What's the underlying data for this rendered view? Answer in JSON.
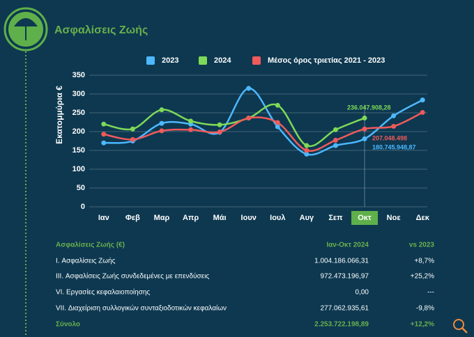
{
  "header": {
    "title": "Ασφαλίσεις Ζωής"
  },
  "chart_data": {
    "type": "line",
    "ylabel": "Εκατομμύρια €",
    "categories": [
      "Ιαν",
      "Φεβ",
      "Μαρ",
      "Απρ",
      "Μάι",
      "Ιουν",
      "Ιουλ",
      "Αυγ",
      "Σεπ",
      "Οκτ",
      "Νοε",
      "Δεκ"
    ],
    "highlight_category": 9,
    "series": [
      {
        "name": "2023",
        "color": "#4db8ff",
        "values": [
          170,
          175,
          222,
          220,
          198,
          315,
          213,
          140,
          163,
          180.74594887,
          242,
          284
        ],
        "value_labels": [
          null,
          null,
          null,
          null,
          null,
          null,
          null,
          null,
          null,
          "180.745.948,87",
          null,
          null
        ]
      },
      {
        "name": "2024",
        "color": "#7ed957",
        "values": [
          220,
          207,
          258,
          228,
          218,
          236,
          270,
          163,
          205,
          236.04790828,
          null,
          null
        ],
        "value_labels": [
          null,
          null,
          null,
          null,
          null,
          null,
          null,
          null,
          null,
          "236.047.908,28",
          null,
          null
        ]
      },
      {
        "name": "Μέσος όρος τριετίας 2021 - 2023",
        "color": "#f05a5a",
        "values": [
          193,
          179,
          202,
          205,
          199,
          236,
          224,
          150,
          177,
          207.048498,
          214,
          251
        ],
        "value_labels": [
          null,
          null,
          null,
          null,
          null,
          null,
          null,
          null,
          null,
          "207.048.498",
          null,
          null
        ]
      }
    ],
    "ylim": [
      0,
      350
    ],
    "yticks": [
      0,
      50,
      100,
      150,
      200,
      250,
      300,
      350
    ],
    "grid": true
  },
  "table": {
    "header": [
      "Ασφαλίσεις Ζωής (€)",
      "Ιαν-Οκτ 2024",
      "vs 2023"
    ],
    "rows": [
      [
        "I. Ασφαλίσεις  Ζωής",
        "1.004.186.066,31",
        "+8,7%"
      ],
      [
        "III. Ασφαλίσεις  Ζωής  συνδεδεμένες με επενδύσεις",
        "972.473.196,97",
        "+25,2%"
      ],
      [
        "VI. Εργασίες κεφαλαιοποίησης",
        "0,00",
        "---"
      ],
      [
        "VII. Διαχείριση συλλογικών συνταξιοδοτικών κεφαλαίων",
        "277.062.935,61",
        "-9,8%"
      ],
      [
        "Σύνολο",
        "2.253.722.198,89",
        "+12,2%"
      ]
    ]
  }
}
